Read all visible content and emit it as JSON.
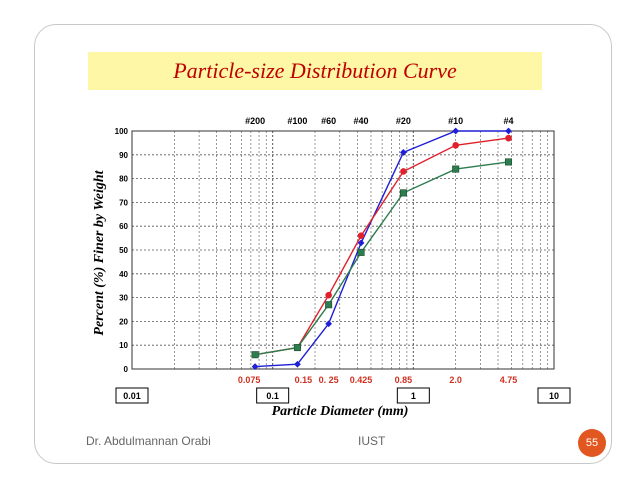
{
  "slide": {
    "footer_left": "Dr. Abdulmannan Orabi",
    "footer_center": "IUST",
    "page_number": "55",
    "colors": {
      "title_background": "#fdf7a6",
      "title_text": "#c00000",
      "page_badge": "#e2571f"
    }
  },
  "chart_data": {
    "type": "line",
    "title": "Particle-size Distribution Curve",
    "xlabel": "Particle Diameter (mm)",
    "ylabel": "Percent (%) Finer by Weight",
    "x_scale": "log",
    "xlim": [
      0.01,
      10
    ],
    "ylim": [
      0,
      100
    ],
    "y_ticks": [
      0,
      10,
      20,
      30,
      40,
      50,
      60,
      70,
      80,
      90,
      100
    ],
    "grid": true,
    "sieve_labels": [
      {
        "label": "#200",
        "x": 0.075
      },
      {
        "label": "#100",
        "x": 0.15
      },
      {
        "label": "#60",
        "x": 0.25
      },
      {
        "label": "#40",
        "x": 0.425
      },
      {
        "label": "#20",
        "x": 0.85
      },
      {
        "label": "#10",
        "x": 2.0
      },
      {
        "label": "#4",
        "x": 4.75
      }
    ],
    "size_labels": [
      {
        "label": "0.075",
        "x": 0.075
      },
      {
        "label": "0.15",
        "x": 0.15
      },
      {
        "label": "0. 25",
        "x": 0.25
      },
      {
        "label": "0.425",
        "x": 0.425
      },
      {
        "label": "0.85",
        "x": 0.85
      },
      {
        "label": "2.0",
        "x": 2.0
      },
      {
        "label": "4.75",
        "x": 4.75
      }
    ],
    "decade_labels": [
      {
        "label": "0.01",
        "x": 0.01
      },
      {
        "label": "0.1",
        "x": 0.1
      },
      {
        "label": "1",
        "x": 1
      },
      {
        "label": "10",
        "x": 10
      }
    ],
    "series": [
      {
        "color": "#1f1fd6",
        "marker": "diamond",
        "x": [
          0.075,
          0.15,
          0.25,
          0.425,
          0.85,
          2.0,
          4.75
        ],
        "y": [
          1,
          2,
          19,
          53,
          91,
          100,
          100
        ]
      },
      {
        "color": "#e0202a",
        "marker": "circle",
        "x": [
          0.075,
          0.15,
          0.25,
          0.425,
          0.85,
          2.0,
          4.75
        ],
        "y": [
          6,
          9,
          31,
          56,
          83,
          94,
          97
        ]
      },
      {
        "color": "#2e7d4f",
        "marker": "square",
        "x": [
          0.075,
          0.15,
          0.25,
          0.425,
          0.85,
          2.0,
          4.75
        ],
        "y": [
          6,
          9,
          27,
          49,
          74,
          84,
          87
        ]
      }
    ]
  }
}
